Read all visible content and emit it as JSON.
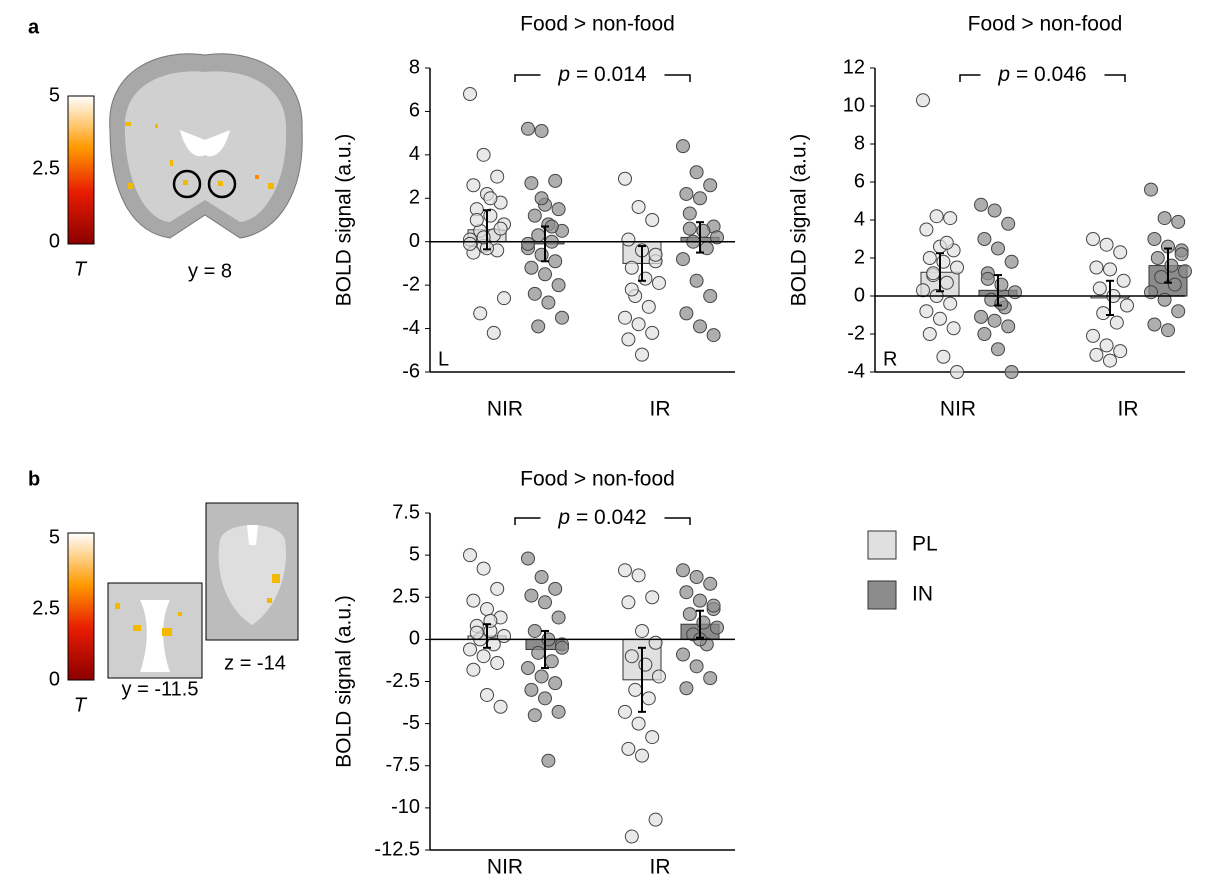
{
  "panel_labels": [
    "a",
    "b"
  ],
  "brain_images": [
    {
      "colorbar": {
        "ticks": [
          0,
          2.5,
          5
        ],
        "label": "T"
      },
      "slices": [
        "y = 8"
      ]
    },
    {
      "colorbar": {
        "ticks": [
          0,
          2.5,
          5
        ],
        "label": "T"
      },
      "slices": [
        "y = -11.5",
        "z = -14"
      ]
    }
  ],
  "chart_data": [
    {
      "type": "bar",
      "title": "Food > non-food",
      "y_label": "BOLD signal (a.u.)",
      "hemisphere": "L",
      "annotation": {
        "symbol": "p",
        "text": "= 0.014"
      },
      "categories": [
        "NIR",
        "IR"
      ],
      "ylim": [
        -6,
        8
      ],
      "yticks": [
        -6,
        -4,
        -2,
        0,
        2,
        4,
        6,
        8
      ],
      "legend": false,
      "series": [
        {
          "name": "PL",
          "color": "#e0e0e0",
          "values": [
            0.55,
            -1.0
          ],
          "errors": [
            0.9,
            0.8
          ],
          "points": [
            [
              6.8,
              4.0,
              3.0,
              2.6,
              2.2,
              1.8,
              1.5,
              1.2,
              0.8,
              0.5,
              0.3,
              0.1,
              -0.2,
              -0.4,
              -0.5,
              -0.3,
              0.6,
              1.0,
              2.0,
              -2.6,
              -3.3,
              -4.2,
              -0.1,
              0.2
            ],
            [
              2.9,
              1.6,
              1.0,
              0.1,
              -0.4,
              -0.9,
              -1.2,
              -1.7,
              -1.9,
              -2.5,
              -3.0,
              -3.5,
              -3.8,
              -4.2,
              -4.5,
              -5.2,
              -0.6,
              -2.2
            ]
          ]
        },
        {
          "name": "IN",
          "color": "#8c8c8c",
          "values": [
            -0.1,
            0.2
          ],
          "errors": [
            0.8,
            0.7
          ],
          "points": [
            [
              5.2,
              5.1,
              2.8,
              2.7,
              1.7,
              1.5,
              1.2,
              0.8,
              0.5,
              0.3,
              0,
              -0.3,
              -0.6,
              -0.9,
              -1.2,
              -1.5,
              -2.0,
              -2.4,
              -2.8,
              -3.5,
              -3.9,
              0.7,
              -0.1,
              2.0
            ],
            [
              4.4,
              3.2,
              2.6,
              2.2,
              2.0,
              0.7,
              0.6,
              0.5,
              0.2,
              0,
              -0.3,
              -0.8,
              -1.8,
              -2.5,
              -3.3,
              -3.9,
              -4.3,
              1.3
            ]
          ]
        }
      ]
    },
    {
      "type": "bar",
      "title": "Food > non-food",
      "y_label": "BOLD signal (a.u.)",
      "hemisphere": "R",
      "annotation": {
        "symbol": "p",
        "text": "= 0.046"
      },
      "categories": [
        "NIR",
        "IR"
      ],
      "ylim": [
        -4,
        12
      ],
      "yticks": [
        -4,
        -2,
        0,
        2,
        4,
        6,
        8,
        10,
        12
      ],
      "legend": false,
      "series": [
        {
          "name": "PL",
          "color": "#e0e0e0",
          "values": [
            1.25,
            -0.1
          ],
          "errors": [
            1.0,
            0.9
          ],
          "points": [
            [
              10.3,
              4.2,
              4.1,
              3.5,
              2.6,
              2.4,
              2.0,
              1.8,
              1.5,
              1.1,
              0.7,
              0.3,
              0,
              -0.4,
              -0.8,
              -1.2,
              -1.7,
              -2.0,
              -3.2,
              -4.0,
              1.2,
              2.8
            ],
            [
              3.0,
              2.7,
              2.3,
              1.5,
              1.4,
              0.8,
              0.4,
              0,
              -0.5,
              -0.9,
              -1.4,
              -2.1,
              -2.6,
              -2.9,
              -3.1,
              -3.4
            ]
          ]
        },
        {
          "name": "IN",
          "color": "#8c8c8c",
          "values": [
            0.3,
            1.6
          ],
          "errors": [
            0.8,
            0.9
          ],
          "points": [
            [
              4.8,
              4.5,
              3.8,
              3.0,
              2.5,
              1.8,
              1.2,
              0.6,
              0.2,
              -0.2,
              -0.6,
              -1.1,
              -1.3,
              -1.6,
              -2.0,
              -2.8,
              -4.0,
              0.9,
              -0.4
            ],
            [
              5.6,
              4.1,
              3.9,
              3.0,
              2.6,
              2.4,
              2.0,
              1.6,
              1.3,
              1.0,
              0.6,
              0.2,
              -0.2,
              -0.8,
              -1.5,
              -1.8,
              2.2
            ]
          ]
        }
      ]
    },
    {
      "type": "bar",
      "title": "Food > non-food",
      "y_label": "BOLD signal (a.u.)",
      "annotation": {
        "symbol": "p",
        "text": "= 0.042"
      },
      "categories": [
        "NIR",
        "IR"
      ],
      "ylim": [
        -12.5,
        7.5
      ],
      "yticks": [
        -12.5,
        -10,
        -7.5,
        -5,
        -2.5,
        0,
        2.5,
        5,
        7.5
      ],
      "legend": true,
      "series": [
        {
          "name": "PL",
          "color": "#e0e0e0",
          "values": [
            0.2,
            -2.4
          ],
          "errors": [
            0.7,
            1.9
          ],
          "points": [
            [
              5.0,
              4.2,
              3.0,
              2.3,
              1.8,
              1.3,
              0.8,
              0.5,
              0.2,
              0,
              -0.3,
              -0.6,
              -1.0,
              -1.4,
              -1.8,
              -3.3,
              -4.0,
              0.4,
              1.1
            ],
            [
              4.1,
              3.8,
              2.5,
              2.2,
              0.5,
              -0.2,
              -1.0,
              -1.5,
              -2.2,
              -3.0,
              -3.5,
              -4.3,
              -5.0,
              -5.8,
              -6.5,
              -6.9,
              -10.7,
              -11.7
            ]
          ]
        },
        {
          "name": "IN",
          "color": "#8c8c8c",
          "values": [
            -0.6,
            0.9
          ],
          "errors": [
            1.1,
            0.8
          ],
          "points": [
            [
              4.8,
              3.7,
              3.0,
              2.6,
              2.2,
              1.3,
              0.5,
              0,
              -0.3,
              -0.8,
              -1.3,
              -1.7,
              -2.2,
              -2.6,
              -3.0,
              -3.5,
              -4.3,
              -4.5,
              -7.2,
              -0.5
            ],
            [
              4.1,
              3.7,
              3.3,
              2.8,
              2.3,
              1.8,
              1.5,
              1.0,
              0.7,
              0.3,
              -0.3,
              -0.9,
              -1.6,
              -2.3,
              -2.9,
              0,
              2.0
            ]
          ]
        }
      ]
    }
  ]
}
